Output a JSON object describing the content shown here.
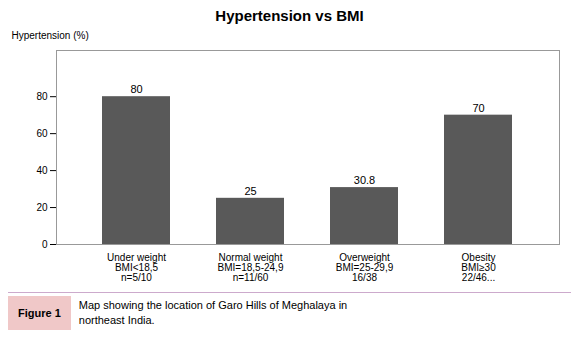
{
  "chart_data": {
    "type": "bar",
    "title": "Hypertension vs BMI",
    "ylabel": "Hypertension (%)",
    "categories": [
      "Under weight\nBMI<18,5\nn=5/10",
      "Normal weight\nBMI=18,5-24,9\nn=11/60",
      "Overweight\nBMI=25-29,9\n16/38",
      "Obesity\nBMI≥30\n22/46..."
    ],
    "values": [
      80,
      25,
      30.8,
      70
    ],
    "color": "#595959",
    "ylim": [
      0,
      105
    ],
    "yticks": [
      0,
      20,
      40,
      60,
      80
    ],
    "grid": false,
    "data_labels": true,
    "caption_label": "Figure 1",
    "caption": "Map showing the location of Garo Hills of Meghalaya in\nnortheast India."
  }
}
